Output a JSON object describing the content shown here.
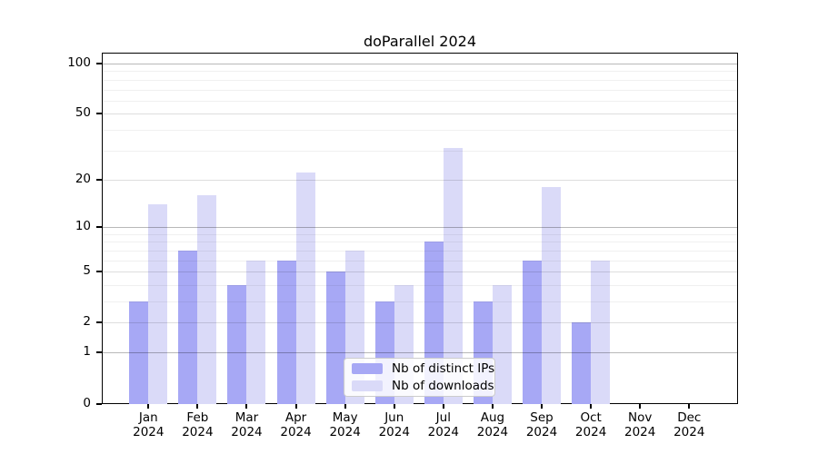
{
  "chart_data": {
    "type": "bar",
    "title": "doParallel 2024",
    "x_categories": [
      {
        "month": "Jan",
        "year": "2024"
      },
      {
        "month": "Feb",
        "year": "2024"
      },
      {
        "month": "Mar",
        "year": "2024"
      },
      {
        "month": "Apr",
        "year": "2024"
      },
      {
        "month": "May",
        "year": "2024"
      },
      {
        "month": "Jun",
        "year": "2024"
      },
      {
        "month": "Jul",
        "year": "2024"
      },
      {
        "month": "Aug",
        "year": "2024"
      },
      {
        "month": "Sep",
        "year": "2024"
      },
      {
        "month": "Oct",
        "year": "2024"
      },
      {
        "month": "Nov",
        "year": "2024"
      },
      {
        "month": "Dec",
        "year": "2024"
      }
    ],
    "series": [
      {
        "name": "Nb of distinct IPs",
        "color": "#a7a8f5",
        "values": [
          3,
          7,
          4,
          6,
          5,
          3,
          8,
          3,
          6,
          2,
          0,
          0
        ]
      },
      {
        "name": "Nb of downloads",
        "color": "#dadaf8",
        "values": [
          14,
          16,
          6,
          22,
          7,
          4,
          31,
          4,
          18,
          6,
          0,
          0
        ]
      }
    ],
    "y_axis": {
      "scale": "log1p",
      "tick_values": [
        0,
        1,
        2,
        5,
        10,
        20,
        50,
        100
      ],
      "tick_labels": [
        "0",
        "1",
        "2",
        "5",
        "10",
        "20",
        "50",
        "100"
      ],
      "decade_gridlines": [
        1,
        10,
        100
      ],
      "mid_gridlines": [
        2,
        5,
        20,
        50
      ],
      "minor_gridlines": [
        3,
        4,
        6,
        7,
        8,
        9,
        30,
        40,
        60,
        70,
        80,
        90
      ],
      "ylim": [
        0,
        116
      ]
    },
    "legend": {
      "position": "inside-bottom-center"
    },
    "grid": true
  },
  "colors": {
    "background": "#ffffff",
    "bar_distinct_ips": "#a7a8f5",
    "bar_downloads": "#dadaf8",
    "spine": "#000000",
    "text": "#000000",
    "legend_border": "#cccccc"
  }
}
